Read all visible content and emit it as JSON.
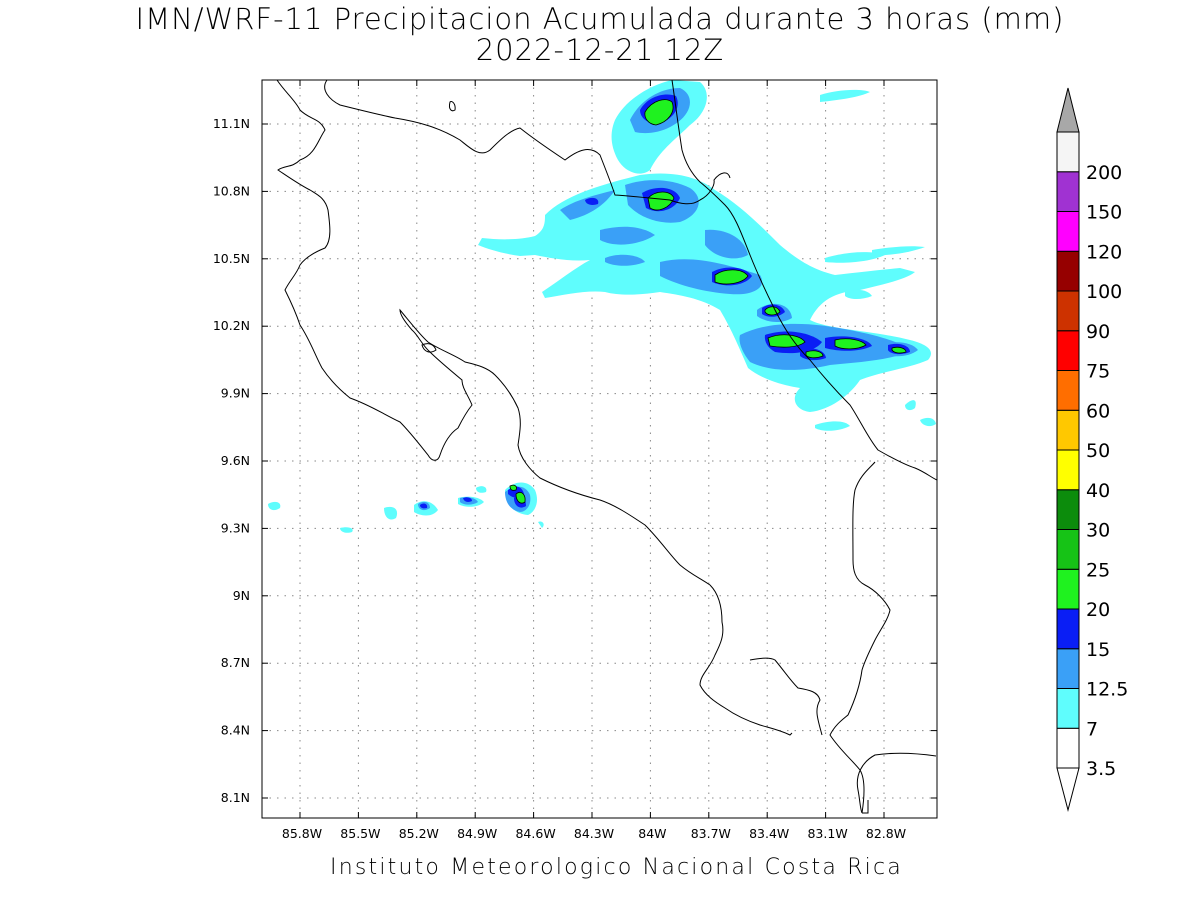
{
  "header": {
    "title": "IMN/WRF-11 Precipitacion Acumulada durante 3 horas (mm)",
    "subtitle": "2022-12-21 12Z"
  },
  "footer": {
    "text": "Instituto Meteorologico Nacional Costa Rica"
  },
  "map": {
    "lon_labels": [
      "85.8W",
      "85.5W",
      "85.2W",
      "84.9W",
      "84.6W",
      "84.3W",
      "84W",
      "83.7W",
      "83.4W",
      "83.1W",
      "82.8W"
    ],
    "lat_labels": [
      "11.1N",
      "10.8N",
      "10.5N",
      "10.2N",
      "9.9N",
      "9.6N",
      "9.3N",
      "9N",
      "8.7N",
      "8.4N",
      "8.1N"
    ],
    "grid": "dotted"
  },
  "colorbar": {
    "labels": [
      "3.5",
      "7",
      "12.5",
      "15",
      "20",
      "25",
      "30",
      "40",
      "50",
      "60",
      "75",
      "90",
      "100",
      "120",
      "150",
      "200"
    ],
    "colors": [
      "#ffffff",
      "#5ffdfd",
      "#3aa0f7",
      "#0a1ef5",
      "#1ff21f",
      "#16c316",
      "#0c8c0c",
      "#ffff00",
      "#ffc800",
      "#ff6e00",
      "#ff0000",
      "#cd3200",
      "#960000",
      "#ff00ff",
      "#a032d2",
      "#f5f5f5"
    ],
    "end_cap_top_color": "#a8a8a8",
    "end_cap_bottom_color": "#ffffff"
  },
  "precip_colors": {
    "cyan": "#5ffdfd",
    "light_blue": "#3aa0f7",
    "blue": "#0a1ef5",
    "green": "#1ff21f",
    "dark_green": "#16c316"
  }
}
